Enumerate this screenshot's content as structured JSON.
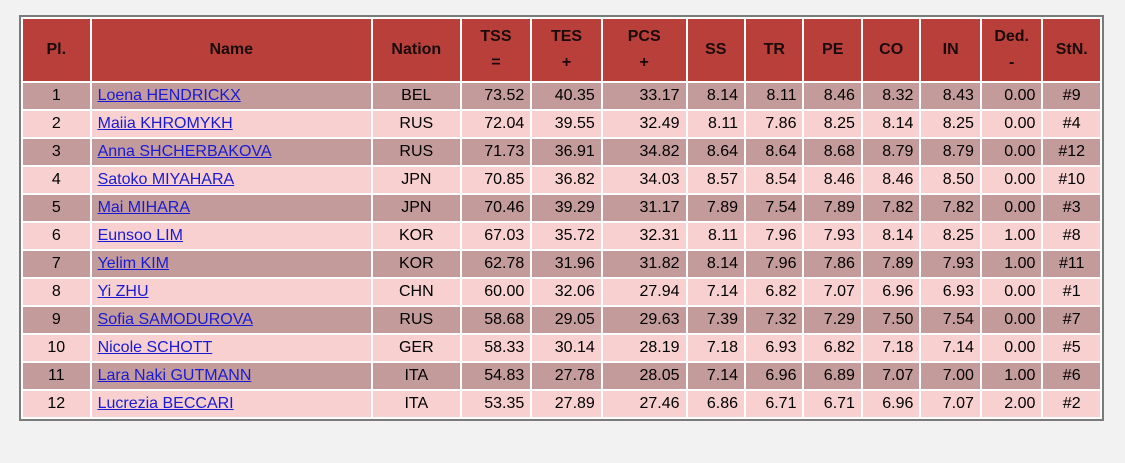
{
  "header": {
    "pl": "Pl.",
    "name": "Name",
    "nation": "Nation",
    "tss": "TSS",
    "tss_sub": "=",
    "tes": "TES",
    "tes_sub": "+",
    "pcs": "PCS",
    "pcs_sub": "+",
    "ss": "SS",
    "tr": "TR",
    "pe": "PE",
    "co": "CO",
    "in": "IN",
    "ded": "Ded.",
    "ded_sub": "-",
    "stn": "StN."
  },
  "rows": [
    {
      "pl": "1",
      "name": "Loena HENDRICKX",
      "nation": "BEL",
      "tss": "73.52",
      "tes": "40.35",
      "pcs": "33.17",
      "ss": "8.14",
      "tr": "8.11",
      "pe": "8.46",
      "co": "8.32",
      "in": "8.43",
      "ded": "0.00",
      "stn": "#9"
    },
    {
      "pl": "2",
      "name": "Maiia KHROMYKH",
      "nation": "RUS",
      "tss": "72.04",
      "tes": "39.55",
      "pcs": "32.49",
      "ss": "8.11",
      "tr": "7.86",
      "pe": "8.25",
      "co": "8.14",
      "in": "8.25",
      "ded": "0.00",
      "stn": "#4"
    },
    {
      "pl": "3",
      "name": "Anna SHCHERBAKOVA",
      "nation": "RUS",
      "tss": "71.73",
      "tes": "36.91",
      "pcs": "34.82",
      "ss": "8.64",
      "tr": "8.64",
      "pe": "8.68",
      "co": "8.79",
      "in": "8.79",
      "ded": "0.00",
      "stn": "#12"
    },
    {
      "pl": "4",
      "name": "Satoko MIYAHARA",
      "nation": "JPN",
      "tss": "70.85",
      "tes": "36.82",
      "pcs": "34.03",
      "ss": "8.57",
      "tr": "8.54",
      "pe": "8.46",
      "co": "8.46",
      "in": "8.50",
      "ded": "0.00",
      "stn": "#10"
    },
    {
      "pl": "5",
      "name": "Mai MIHARA",
      "nation": "JPN",
      "tss": "70.46",
      "tes": "39.29",
      "pcs": "31.17",
      "ss": "7.89",
      "tr": "7.54",
      "pe": "7.89",
      "co": "7.82",
      "in": "7.82",
      "ded": "0.00",
      "stn": "#3"
    },
    {
      "pl": "6",
      "name": "Eunsoo LIM",
      "nation": "KOR",
      "tss": "67.03",
      "tes": "35.72",
      "pcs": "32.31",
      "ss": "8.11",
      "tr": "7.96",
      "pe": "7.93",
      "co": "8.14",
      "in": "8.25",
      "ded": "1.00",
      "stn": "#8"
    },
    {
      "pl": "7",
      "name": "Yelim KIM",
      "nation": "KOR",
      "tss": "62.78",
      "tes": "31.96",
      "pcs": "31.82",
      "ss": "8.14",
      "tr": "7.96",
      "pe": "7.86",
      "co": "7.89",
      "in": "7.93",
      "ded": "1.00",
      "stn": "#11"
    },
    {
      "pl": "8",
      "name": "Yi ZHU",
      "nation": "CHN",
      "tss": "60.00",
      "tes": "32.06",
      "pcs": "27.94",
      "ss": "7.14",
      "tr": "6.82",
      "pe": "7.07",
      "co": "6.96",
      "in": "6.93",
      "ded": "0.00",
      "stn": "#1"
    },
    {
      "pl": "9",
      "name": "Sofia SAMODUROVA",
      "nation": "RUS",
      "tss": "58.68",
      "tes": "29.05",
      "pcs": "29.63",
      "ss": "7.39",
      "tr": "7.32",
      "pe": "7.29",
      "co": "7.50",
      "in": "7.54",
      "ded": "0.00",
      "stn": "#7"
    },
    {
      "pl": "10",
      "name": "Nicole SCHOTT",
      "nation": "GER",
      "tss": "58.33",
      "tes": "30.14",
      "pcs": "28.19",
      "ss": "7.18",
      "tr": "6.93",
      "pe": "6.82",
      "co": "7.18",
      "in": "7.14",
      "ded": "0.00",
      "stn": "#5"
    },
    {
      "pl": "11",
      "name": "Lara Naki GUTMANN",
      "nation": "ITA",
      "tss": "54.83",
      "tes": "27.78",
      "pcs": "28.05",
      "ss": "7.14",
      "tr": "6.96",
      "pe": "6.89",
      "co": "7.07",
      "in": "7.00",
      "ded": "1.00",
      "stn": "#6"
    },
    {
      "pl": "12",
      "name": "Lucrezia BECCARI",
      "nation": "ITA",
      "tss": "53.35",
      "tes": "27.89",
      "pcs": "27.46",
      "ss": "6.86",
      "tr": "6.71",
      "pe": "6.71",
      "co": "6.96",
      "in": "7.07",
      "ded": "2.00",
      "stn": "#2"
    }
  ],
  "colors": {
    "header_bg": "#b9403a",
    "row_odd_bg": "#c49b9b",
    "row_even_bg": "#f7d0cf",
    "link": "#1a1ad6"
  }
}
